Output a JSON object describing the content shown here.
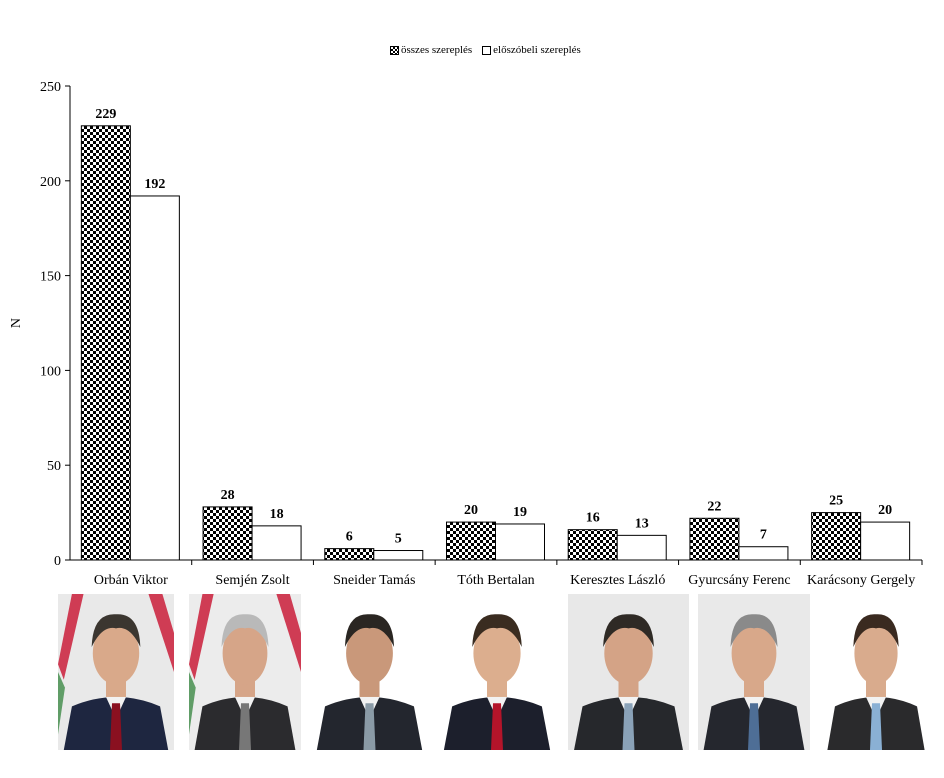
{
  "chart_data": {
    "type": "bar",
    "categories": [
      "Orbán Viktor",
      "Semjén Zsolt",
      "Sneider Tamás",
      "Tóth Bertalan",
      "Keresztes László",
      "Gyurcsány Ferenc",
      "Karácsony Gergely"
    ],
    "series": [
      {
        "name": "összes szereplés",
        "values": [
          229,
          28,
          6,
          20,
          16,
          22,
          25
        ]
      },
      {
        "name": "előszóbeli szereplés",
        "values": [
          192,
          18,
          5,
          19,
          13,
          7,
          20
        ]
      }
    ],
    "ylabel": "N",
    "ylim": [
      0,
      250
    ],
    "yticks": [
      "0",
      "50",
      "100",
      "150",
      "200",
      "250"
    ],
    "grid": false,
    "legend_position": "top-center"
  },
  "legend": {
    "items": [
      "összes szereplés",
      "előszóbeli szereplés"
    ]
  },
  "portraits": [
    {
      "person": "Orbán Viktor",
      "background": "#e9e9e9",
      "suit": "#1e2640",
      "tie": "#8a1020",
      "hair": "#3b3630",
      "skin": "#d9a98a",
      "flag": true
    },
    {
      "person": "Semjén Zsolt",
      "background": "#ececec",
      "suit": "#2b2b2e",
      "tie": "#777777",
      "hair": "#b9b9b9",
      "skin": "#d6a588",
      "flag": true
    },
    {
      "person": "Sneider Tamás",
      "background": "#ffffff",
      "suit": "#23262e",
      "tie": "#8a9aa6",
      "hair": "#2a2622",
      "skin": "#c9987a",
      "flag": false
    },
    {
      "person": "Tóth Bertalan",
      "background": "#ffffff",
      "suit": "#1c1f2c",
      "tie": "#b4142a",
      "hair": "#3a2c20",
      "skin": "#dcae8e",
      "flag": false
    },
    {
      "person": "Keresztes László",
      "background": "#e8e8e8",
      "suit": "#26282c",
      "tie": "#8aa2b8",
      "hair": "#2f2a25",
      "skin": "#d4a386",
      "flag": false
    },
    {
      "person": "Gyurcsány Ferenc",
      "background": "#e9e9e9",
      "suit": "#25272e",
      "tie": "#4e6e96",
      "hair": "#8a8a8a",
      "skin": "#d8a88a",
      "flag": false
    },
    {
      "person": "Karácsony Gergely",
      "background": "#ffffff",
      "suit": "#2a2a2c",
      "tie": "#8ab0d4",
      "hair": "#3a2a20",
      "skin": "#d9ab8d",
      "flag": false
    }
  ]
}
